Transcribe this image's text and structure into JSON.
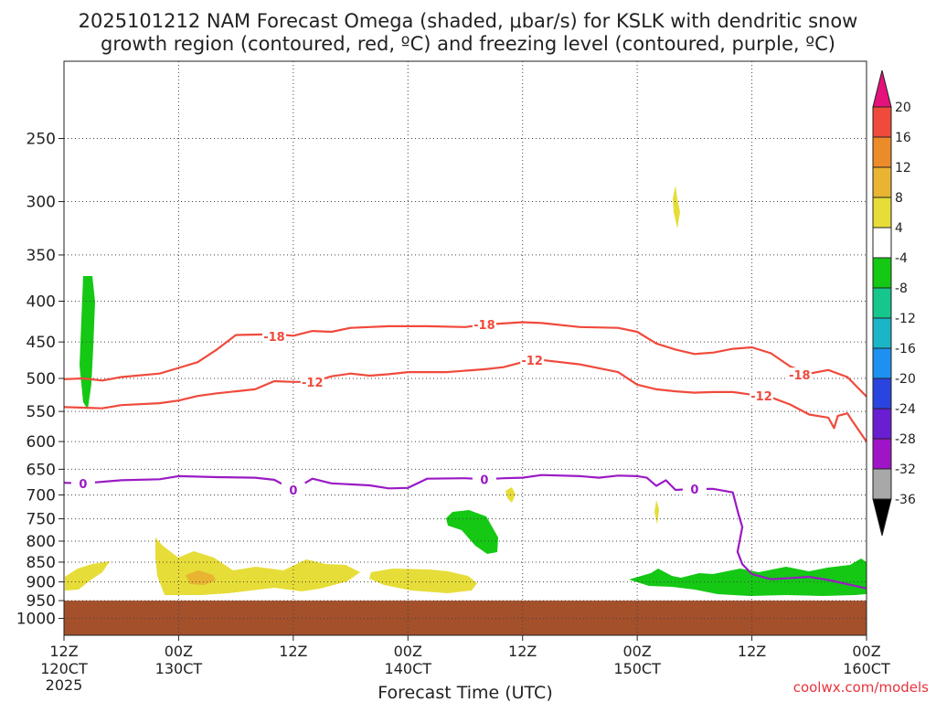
{
  "chart_data": {
    "type": "time-height cross-section",
    "title_line1": "2025101212 NAM Forecast Omega (shaded, μbar/s) for KSLK with dendritic snow",
    "title_line2": "growth region (contoured, red, ºC) and freezing level (contoured, purple, ºC)",
    "xlabel": "Forecast Time (UTC)",
    "credit": "coolwx.com/models",
    "x_unit": "hours since 2025-10-12 12Z",
    "xlim": [
      0,
      84
    ],
    "y_unit": "hPa",
    "ylim": [
      1050,
      200
    ],
    "y_ticks": [
      250,
      300,
      350,
      400,
      450,
      500,
      550,
      600,
      650,
      700,
      750,
      800,
      850,
      900,
      950,
      1000
    ],
    "x_ticks": [
      {
        "h": 0,
        "hour": "12Z",
        "date": "120CT",
        "year": "2025"
      },
      {
        "h": 12,
        "hour": "00Z",
        "date": "130CT",
        "year": ""
      },
      {
        "h": 24,
        "hour": "12Z",
        "date": "",
        "year": ""
      },
      {
        "h": 36,
        "hour": "00Z",
        "date": "140CT",
        "year": ""
      },
      {
        "h": 48,
        "hour": "12Z",
        "date": "",
        "year": ""
      },
      {
        "h": 60,
        "hour": "00Z",
        "date": "150CT",
        "year": ""
      },
      {
        "h": 72,
        "hour": "12Z",
        "date": "",
        "year": ""
      },
      {
        "h": 84,
        "hour": "00Z",
        "date": "160CT",
        "year": ""
      }
    ],
    "colorbar": [
      {
        "lo": 20,
        "hi": 24,
        "color": "#e4127a"
      },
      {
        "lo": 16,
        "hi": 20,
        "color": "#f04a3c"
      },
      {
        "lo": 12,
        "hi": 16,
        "color": "#ec8b2a"
      },
      {
        "lo": 8,
        "hi": 12,
        "color": "#e8b432"
      },
      {
        "lo": 4,
        "hi": 8,
        "color": "#e6dd38"
      },
      {
        "lo": -4,
        "hi": 4,
        "color": "#ffffff"
      },
      {
        "lo": -8,
        "hi": -4,
        "color": "#14c814"
      },
      {
        "lo": -12,
        "hi": -8,
        "color": "#16c68c"
      },
      {
        "lo": -16,
        "hi": -12,
        "color": "#1ab6c8"
      },
      {
        "lo": -20,
        "hi": -16,
        "color": "#1e90f0"
      },
      {
        "lo": -24,
        "hi": -20,
        "color": "#2a44e0"
      },
      {
        "lo": -28,
        "hi": -24,
        "color": "#6a1ed2"
      },
      {
        "lo": -32,
        "hi": -28,
        "color": "#a014c8"
      },
      {
        "lo": -36,
        "hi": -32,
        "color": "#a8a8a8"
      },
      {
        "lo": -40,
        "hi": -36,
        "color": "#000000"
      }
    ],
    "colorbar_labels": [
      "20",
      "16",
      "12",
      "8",
      "4",
      "-4",
      "-8",
      "-12",
      "-16",
      "-20",
      "-24",
      "-28",
      "-32",
      "-36"
    ],
    "contours": [
      {
        "name": "minus18-contour",
        "label": "-18",
        "color": "#f04a3c",
        "label_at": [
          [
            22,
            443
          ],
          [
            44,
            428
          ],
          [
            77,
            495
          ]
        ],
        "points": [
          [
            0,
            501
          ],
          [
            2,
            500
          ],
          [
            4,
            503
          ],
          [
            6,
            498
          ],
          [
            10,
            493
          ],
          [
            12,
            485
          ],
          [
            14,
            477
          ],
          [
            16,
            460
          ],
          [
            18,
            441
          ],
          [
            22,
            440
          ],
          [
            24,
            442
          ],
          [
            26,
            436
          ],
          [
            28,
            437
          ],
          [
            30,
            432
          ],
          [
            34,
            430
          ],
          [
            38,
            430
          ],
          [
            42,
            431
          ],
          [
            44,
            428
          ],
          [
            48,
            425
          ],
          [
            50,
            426
          ],
          [
            54,
            431
          ],
          [
            58,
            432
          ],
          [
            60,
            437
          ],
          [
            62,
            452
          ],
          [
            64,
            460
          ],
          [
            66,
            466
          ],
          [
            68,
            464
          ],
          [
            70,
            459
          ],
          [
            72,
            457
          ],
          [
            74,
            465
          ],
          [
            76,
            483
          ],
          [
            78,
            493
          ],
          [
            80,
            488
          ],
          [
            82,
            498
          ],
          [
            84,
            527
          ]
        ]
      },
      {
        "name": "minus12-contour",
        "label": "-12",
        "color": "#f04a3c",
        "label_at": [
          [
            26,
            505
          ],
          [
            49,
            474
          ],
          [
            73,
            526
          ]
        ],
        "points": [
          [
            0,
            543
          ],
          [
            2,
            544
          ],
          [
            4,
            545
          ],
          [
            6,
            540
          ],
          [
            10,
            537
          ],
          [
            12,
            533
          ],
          [
            14,
            526
          ],
          [
            16,
            522
          ],
          [
            18,
            519
          ],
          [
            20,
            516
          ],
          [
            22,
            504
          ],
          [
            24,
            505
          ],
          [
            26,
            505
          ],
          [
            28,
            497
          ],
          [
            30,
            493
          ],
          [
            32,
            496
          ],
          [
            34,
            494
          ],
          [
            36,
            491
          ],
          [
            40,
            491
          ],
          [
            44,
            487
          ],
          [
            46,
            484
          ],
          [
            48,
            477
          ],
          [
            50,
            474
          ],
          [
            54,
            480
          ],
          [
            58,
            491
          ],
          [
            60,
            509
          ],
          [
            62,
            516
          ],
          [
            64,
            519
          ],
          [
            66,
            521
          ],
          [
            68,
            520
          ],
          [
            70,
            520
          ],
          [
            72,
            524
          ],
          [
            74,
            528
          ],
          [
            76,
            539
          ],
          [
            78,
            555
          ],
          [
            80,
            560
          ],
          [
            80.6,
            577
          ],
          [
            81,
            557
          ],
          [
            82,
            553
          ],
          [
            82.5,
            565
          ],
          [
            84,
            600
          ]
        ]
      },
      {
        "name": "freezing-level-contour",
        "label": "0",
        "color": "#9a1ac4",
        "label_at": [
          [
            2,
            677
          ],
          [
            24,
            690
          ],
          [
            44,
            669
          ],
          [
            66,
            688
          ]
        ],
        "points": [
          [
            0,
            676
          ],
          [
            2,
            677
          ],
          [
            6,
            671
          ],
          [
            10,
            669
          ],
          [
            12,
            663
          ],
          [
            16,
            665
          ],
          [
            20,
            666
          ],
          [
            22,
            670
          ],
          [
            24,
            690
          ],
          [
            26,
            668
          ],
          [
            28,
            677
          ],
          [
            32,
            681
          ],
          [
            34,
            687
          ],
          [
            36,
            686
          ],
          [
            38,
            668
          ],
          [
            42,
            667
          ],
          [
            44,
            669
          ],
          [
            46,
            667
          ],
          [
            48,
            666
          ],
          [
            50,
            661
          ],
          [
            54,
            663
          ],
          [
            56,
            666
          ],
          [
            58,
            662
          ],
          [
            60,
            663
          ],
          [
            61,
            666
          ],
          [
            62,
            682
          ],
          [
            63,
            671
          ],
          [
            64,
            690
          ],
          [
            66,
            688
          ],
          [
            68,
            688
          ],
          [
            70,
            695
          ],
          [
            70.6,
            740
          ],
          [
            71,
            768
          ],
          [
            70.5,
            825
          ],
          [
            71,
            855
          ],
          [
            72,
            880
          ],
          [
            74,
            893
          ],
          [
            78,
            887
          ],
          [
            80,
            895
          ],
          [
            84,
            917
          ]
        ]
      }
    ],
    "ground_pressure_hpa": 950
  }
}
